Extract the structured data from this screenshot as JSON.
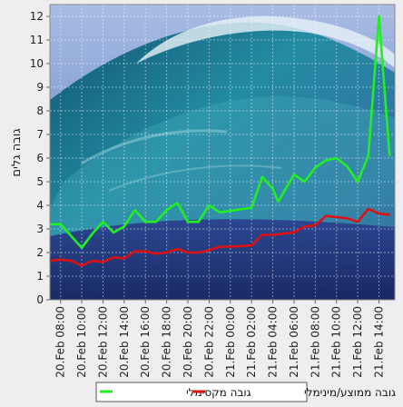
{
  "chart_data": {
    "type": "line",
    "title": "",
    "xlabel": "",
    "ylabel": "גובה גלים",
    "ylim": [
      0,
      12.5
    ],
    "yticks": [
      0,
      1,
      2,
      3,
      4,
      5,
      6,
      7,
      8,
      9,
      10,
      11,
      12
    ],
    "grid": true,
    "legend_position": "bottom",
    "background": "ocean-wave-photo",
    "x_tick_labels": [
      "20.Feb 08:00",
      "20.Feb 10:00",
      "20.Feb 12:00",
      "20.Feb 14:00",
      "20.Feb 16:00",
      "20.Feb 18:00",
      "20.Feb 20:00",
      "20.Feb 22:00",
      "21.Feb 00:00",
      "21.Feb 02:00",
      "21.Feb 04:00",
      "21.Feb 06:00",
      "21.Feb 08:00",
      "21.Feb 10:00",
      "21.Feb 12:00",
      "21.Feb 14:00"
    ],
    "x_range": [
      "20.Feb 07:00",
      "21.Feb 15:30"
    ],
    "series": [
      {
        "name": "גובה מקסימלי",
        "color": "#22ee22",
        "points": [
          [
            "20.Feb 07:00",
            3.2
          ],
          [
            "20.Feb 08:00",
            3.2
          ],
          [
            "20.Feb 09:00",
            2.7
          ],
          [
            "20.Feb 10:00",
            2.2
          ],
          [
            "20.Feb 11:00",
            2.8
          ],
          [
            "20.Feb 12:00",
            3.3
          ],
          [
            "20.Feb 13:00",
            2.85
          ],
          [
            "20.Feb 14:00",
            3.1
          ],
          [
            "20.Feb 15:00",
            3.8
          ],
          [
            "20.Feb 16:00",
            3.3
          ],
          [
            "20.Feb 17:00",
            3.3
          ],
          [
            "20.Feb 18:00",
            3.8
          ],
          [
            "20.Feb 19:00",
            4.1
          ],
          [
            "20.Feb 20:00",
            3.3
          ],
          [
            "20.Feb 21:00",
            3.3
          ],
          [
            "20.Feb 22:00",
            4.0
          ],
          [
            "20.Feb 23:00",
            3.7
          ],
          [
            "21.Feb 02:00",
            3.9
          ],
          [
            "21.Feb 03:00",
            5.2
          ],
          [
            "21.Feb 04:00",
            4.7
          ],
          [
            "21.Feb 04:30",
            4.15
          ],
          [
            "21.Feb 06:00",
            5.3
          ],
          [
            "21.Feb 07:00",
            5.0
          ],
          [
            "21.Feb 08:00",
            5.6
          ],
          [
            "21.Feb 09:00",
            5.9
          ],
          [
            "21.Feb 10:00",
            6.0
          ],
          [
            "21.Feb 11:00",
            5.65
          ],
          [
            "21.Feb 12:00",
            5.0
          ],
          [
            "21.Feb 13:00",
            6.1
          ],
          [
            "21.Feb 14:00",
            12.0
          ],
          [
            "21.Feb 15:00",
            6.1
          ]
        ]
      },
      {
        "name": "גובה ממוצע/מינימלי",
        "color": "#dd1111",
        "points": [
          [
            "20.Feb 07:00",
            1.65
          ],
          [
            "20.Feb 08:00",
            1.7
          ],
          [
            "20.Feb 09:00",
            1.65
          ],
          [
            "20.Feb 10:00",
            1.45
          ],
          [
            "20.Feb 11:00",
            1.65
          ],
          [
            "20.Feb 12:00",
            1.6
          ],
          [
            "20.Feb 13:00",
            1.8
          ],
          [
            "20.Feb 14:00",
            1.75
          ],
          [
            "20.Feb 15:00",
            2.05
          ],
          [
            "20.Feb 16:00",
            2.05
          ],
          [
            "20.Feb 17:00",
            1.95
          ],
          [
            "20.Feb 18:00",
            2.0
          ],
          [
            "20.Feb 19:00",
            2.15
          ],
          [
            "20.Feb 20:00",
            2.0
          ],
          [
            "20.Feb 21:00",
            2.0
          ],
          [
            "20.Feb 22:00",
            2.1
          ],
          [
            "20.Feb 23:00",
            2.25
          ],
          [
            "21.Feb 00:00",
            2.25
          ],
          [
            "21.Feb 02:00",
            2.3
          ],
          [
            "21.Feb 03:00",
            2.75
          ],
          [
            "21.Feb 04:00",
            2.75
          ],
          [
            "21.Feb 05:00",
            2.8
          ],
          [
            "21.Feb 06:00",
            2.85
          ],
          [
            "21.Feb 07:00",
            3.1
          ],
          [
            "21.Feb 08:00",
            3.15
          ],
          [
            "21.Feb 09:00",
            3.55
          ],
          [
            "21.Feb 10:00",
            3.5
          ],
          [
            "21.Feb 11:00",
            3.45
          ],
          [
            "21.Feb 12:00",
            3.3
          ],
          [
            "21.Feb 13:00",
            3.85
          ],
          [
            "21.Feb 14:00",
            3.65
          ],
          [
            "21.Feb 15:00",
            3.6
          ]
        ]
      }
    ]
  }
}
